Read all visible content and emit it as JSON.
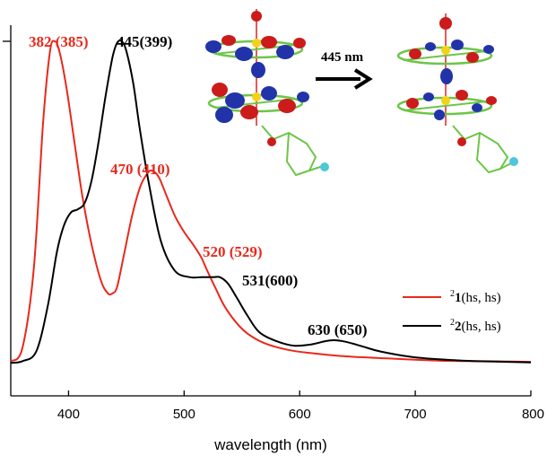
{
  "chart_data": {
    "type": "line",
    "xlabel": "wavelength (nm)",
    "ylabel": "",
    "xlim": [
      350,
      800
    ],
    "ylim": [
      0,
      1.08
    ],
    "x_ticks": [
      400,
      500,
      600,
      700,
      800
    ],
    "x_tick_labels": [
      "400",
      "500",
      "600",
      "700",
      "800"
    ],
    "grid": false,
    "legend_position": "right",
    "series": [
      {
        "legend_superscript": "2",
        "legend_number": "1",
        "legend_suffix": "(hs, hs)",
        "color": "#e8291c",
        "x": [
          350,
          360,
          370,
          378,
          384,
          388,
          392,
          398,
          405,
          412,
          420,
          428,
          434,
          438,
          442,
          448,
          455,
          462,
          468,
          472,
          478,
          485,
          492,
          500,
          508,
          515,
          520,
          528,
          535,
          545,
          555,
          570,
          590,
          610,
          640,
          680,
          720,
          760,
          800
        ],
        "y": [
          0.01,
          0.05,
          0.3,
          0.75,
          0.97,
          1.0,
          0.97,
          0.86,
          0.69,
          0.52,
          0.37,
          0.26,
          0.22,
          0.22,
          0.24,
          0.34,
          0.46,
          0.55,
          0.59,
          0.6,
          0.58,
          0.52,
          0.46,
          0.41,
          0.37,
          0.33,
          0.29,
          0.23,
          0.18,
          0.13,
          0.095,
          0.065,
          0.045,
          0.035,
          0.025,
          0.018,
          0.012,
          0.01,
          0.008
        ]
      },
      {
        "legend_superscript": "2",
        "legend_number": "2",
        "legend_suffix": "(hs, hs)",
        "color": "#000000",
        "x": [
          350,
          360,
          372,
          382,
          390,
          396,
          402,
          408,
          414,
          420,
          426,
          432,
          438,
          442,
          446,
          450,
          456,
          462,
          470,
          480,
          492,
          505,
          515,
          525,
          531,
          538,
          545,
          555,
          565,
          580,
          595,
          610,
          622,
          630,
          640,
          655,
          670,
          700,
          740,
          780,
          800
        ],
        "y": [
          0.005,
          0.01,
          0.04,
          0.18,
          0.35,
          0.43,
          0.47,
          0.48,
          0.5,
          0.57,
          0.69,
          0.83,
          0.95,
          0.995,
          1.0,
          0.97,
          0.87,
          0.72,
          0.55,
          0.38,
          0.29,
          0.27,
          0.27,
          0.27,
          0.27,
          0.25,
          0.21,
          0.15,
          0.1,
          0.072,
          0.058,
          0.062,
          0.072,
          0.075,
          0.07,
          0.055,
          0.04,
          0.022,
          0.012,
          0.008,
          0.006
        ]
      }
    ],
    "annotations": [
      {
        "text": "382 (385)",
        "color": "#e8291c"
      },
      {
        "text": "445(399)",
        "color": "#000000"
      },
      {
        "text": "470 (410)",
        "color": "#e8291c"
      },
      {
        "text": "520 (529)",
        "color": "#e8291c"
      },
      {
        "text": "531(600)",
        "color": "#000000"
      },
      {
        "text": "630 (650)",
        "color": "#000000"
      }
    ]
  },
  "inset": {
    "transition_label": "445 nm"
  }
}
